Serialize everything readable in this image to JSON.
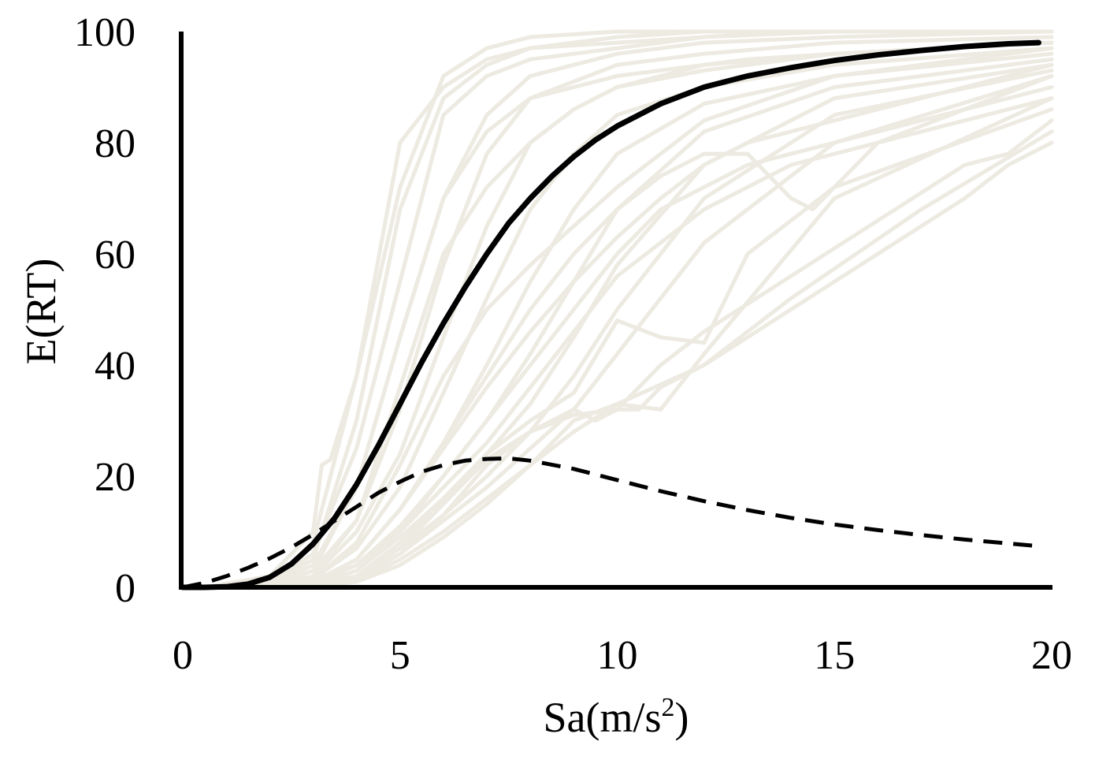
{
  "chart_data": {
    "type": "line",
    "title": "",
    "xlabel": "Sa(m/s",
    "xlabel_sup": "2",
    "xlabel_close": ")",
    "ylabel": "E(RT)",
    "xlim": [
      0,
      20
    ],
    "ylim": [
      0,
      100
    ],
    "xticks": [
      0,
      5,
      10,
      15,
      20
    ],
    "yticks": [
      0,
      20,
      40,
      60,
      80,
      100
    ],
    "grid": false,
    "legend": "none",
    "colors": {
      "background_curves": "#ECEAE1",
      "mean": "#000000",
      "dashed": "#000000"
    },
    "background_curves": [
      {
        "name": "",
        "x": [
          0.5,
          2,
          3,
          3.2,
          3.4,
          4,
          5,
          6,
          7,
          8,
          10,
          14,
          20
        ],
        "y": [
          0,
          2,
          10,
          22,
          23,
          38,
          72,
          92,
          97,
          99,
          100,
          100,
          100
        ]
      },
      {
        "name": "",
        "x": [
          0.5,
          2,
          3,
          4,
          5,
          6,
          7,
          8,
          10,
          12,
          14,
          20
        ],
        "y": [
          0,
          1,
          8,
          38,
          80,
          90,
          95,
          97,
          98,
          99,
          100,
          100
        ]
      },
      {
        "name": "",
        "x": [
          0.5,
          2,
          3,
          4,
          5,
          6,
          7,
          8,
          10,
          12,
          15,
          20
        ],
        "y": [
          0,
          1,
          6,
          25,
          55,
          85,
          92,
          95,
          97,
          99,
          100,
          100
        ]
      },
      {
        "name": "",
        "x": [
          0.5,
          2,
          3,
          4,
          5,
          6,
          7,
          8,
          10,
          12,
          15,
          20
        ],
        "y": [
          0,
          0.5,
          4,
          18,
          45,
          70,
          85,
          92,
          96,
          98,
          99,
          100
        ]
      },
      {
        "name": "",
        "x": [
          0.5,
          2,
          3,
          4,
          5,
          6,
          7,
          8,
          10,
          12,
          15,
          20
        ],
        "y": [
          0,
          0.5,
          3,
          12,
          32,
          58,
          78,
          88,
          94,
          96,
          98,
          99
        ]
      },
      {
        "name": "",
        "x": [
          0.5,
          2,
          3,
          4,
          5,
          6,
          7,
          8,
          9,
          10,
          12,
          15,
          20
        ],
        "y": [
          0,
          0.3,
          2,
          10,
          24,
          45,
          65,
          80,
          86,
          90,
          93,
          96,
          98
        ]
      },
      {
        "name": "",
        "x": [
          0.5,
          2,
          3,
          4,
          5,
          6,
          7,
          8,
          9,
          10,
          12,
          15,
          20
        ],
        "y": [
          0,
          0.2,
          1.5,
          7,
          18,
          35,
          52,
          68,
          78,
          85,
          90,
          94,
          97
        ]
      },
      {
        "name": "",
        "x": [
          0.5,
          2,
          3,
          4,
          5,
          6,
          7,
          8,
          9,
          10,
          12,
          15,
          20
        ],
        "y": [
          0,
          0.1,
          1,
          5,
          14,
          26,
          40,
          55,
          68,
          78,
          87,
          92,
          96
        ]
      },
      {
        "name": "",
        "x": [
          0.5,
          2,
          3,
          4,
          5,
          6,
          7,
          8,
          9,
          10,
          12,
          15,
          20
        ],
        "y": [
          0,
          0.1,
          0.8,
          4,
          11,
          20,
          30,
          42,
          55,
          68,
          82,
          90,
          95
        ]
      },
      {
        "name": "",
        "x": [
          0.5,
          2,
          3,
          4,
          5,
          6,
          7,
          8,
          9,
          10,
          12,
          15,
          20
        ],
        "y": [
          0,
          0.1,
          0.6,
          3,
          9,
          16,
          24,
          33,
          45,
          58,
          76,
          88,
          94
        ]
      },
      {
        "name": "",
        "x": [
          0.5,
          2,
          3,
          4,
          5,
          6,
          7,
          8,
          9,
          10,
          12,
          15,
          20
        ],
        "y": [
          0,
          0.05,
          0.5,
          2,
          7,
          13,
          20,
          28,
          38,
          50,
          70,
          85,
          93
        ]
      },
      {
        "name": "",
        "x": [
          0.5,
          2,
          3,
          4,
          5,
          6,
          7,
          8,
          9,
          10,
          12,
          15,
          20
        ],
        "y": [
          0,
          0.05,
          0.4,
          1.5,
          6,
          12,
          18,
          25,
          32,
          42,
          62,
          80,
          92
        ]
      },
      {
        "name": "",
        "x": [
          0.5,
          2,
          3,
          4,
          5,
          6,
          7,
          8,
          9,
          10,
          11,
          12,
          15,
          20
        ],
        "y": [
          0,
          0.05,
          0.3,
          1.2,
          5,
          10,
          16,
          22,
          28,
          33,
          32,
          42,
          70,
          88
        ]
      },
      {
        "name": "",
        "x": [
          0.5,
          2,
          3,
          4,
          5,
          6,
          7,
          8,
          9,
          10,
          12,
          14,
          17,
          20
        ],
        "y": [
          0,
          0.05,
          0.3,
          1,
          4,
          9,
          15,
          22,
          30,
          33,
          40,
          52,
          68,
          82
        ]
      },
      {
        "name": "",
        "x": [
          0.5,
          2,
          3,
          4,
          5,
          6,
          7,
          8,
          9,
          10,
          11,
          12,
          13,
          15,
          20
        ],
        "y": [
          0,
          0.05,
          0.5,
          2,
          8,
          16,
          24,
          30,
          35,
          48,
          45,
          44,
          60,
          72,
          86
        ]
      },
      {
        "name": "",
        "x": [
          0.5,
          2,
          3,
          4,
          5,
          6,
          7,
          8,
          9,
          10,
          11,
          12,
          13,
          14,
          15,
          20
        ],
        "y": [
          0,
          0.05,
          0.5,
          3,
          10,
          20,
          30,
          40,
          50,
          60,
          68,
          72,
          76,
          78,
          80,
          90
        ]
      },
      {
        "name": "",
        "x": [
          0.5,
          2,
          3,
          4,
          5,
          6,
          7,
          8,
          9,
          10,
          11,
          12,
          13,
          14,
          14.5,
          15,
          16,
          20
        ],
        "y": [
          0,
          0.1,
          1,
          5,
          14,
          26,
          38,
          50,
          60,
          68,
          74,
          78,
          78,
          70,
          68,
          72,
          80,
          92
        ]
      },
      {
        "name": "",
        "x": [
          0.5,
          2,
          3,
          4,
          5,
          6,
          7,
          8,
          9,
          10,
          11,
          12,
          13,
          14,
          15,
          16,
          18,
          20
        ],
        "y": [
          0,
          0.1,
          1,
          5,
          14,
          25,
          36,
          46,
          55,
          63,
          70,
          76,
          80,
          82,
          84,
          86,
          90,
          94
        ]
      },
      {
        "name": "",
        "x": [
          0.5,
          2,
          3,
          4,
          5,
          6,
          7,
          8,
          9,
          10,
          12,
          14,
          16,
          18,
          20
        ],
        "y": [
          0,
          0.1,
          1,
          4,
          10,
          18,
          26,
          36,
          46,
          56,
          68,
          76,
          80,
          84,
          88
        ]
      },
      {
        "name": "",
        "x": [
          0.5,
          2,
          3,
          4,
          5,
          6,
          7,
          8,
          9,
          10,
          11,
          12,
          14,
          16,
          18,
          19,
          20
        ],
        "y": [
          0,
          0.05,
          0.5,
          2,
          7,
          15,
          23,
          28,
          31,
          32,
          40,
          46,
          56,
          66,
          76,
          78,
          84
        ]
      },
      {
        "name": "",
        "x": [
          0.5,
          2,
          3,
          4,
          5,
          6,
          7,
          8,
          9,
          9.5,
          10,
          10.5,
          11,
          12,
          13,
          14,
          15,
          16,
          17,
          18,
          19,
          20
        ],
        "y": [
          0,
          0.05,
          0.5,
          2,
          6,
          13,
          22,
          28,
          32,
          30,
          32,
          32,
          36,
          40,
          45,
          50,
          55,
          60,
          65,
          70,
          76,
          80
        ]
      },
      {
        "name": "",
        "x": [
          0.5,
          2,
          3,
          4,
          5,
          6,
          7,
          8,
          9,
          10,
          11,
          12,
          13,
          15,
          20
        ],
        "y": [
          0,
          0.2,
          3,
          18,
          45,
          70,
          82,
          88,
          90,
          92,
          93,
          94,
          95,
          96,
          98
        ]
      },
      {
        "name": "",
        "x": [
          0.5,
          2,
          3,
          4,
          5,
          6,
          7,
          8,
          10,
          12,
          15,
          20
        ],
        "y": [
          0,
          0.8,
          5,
          30,
          68,
          88,
          94,
          97,
          99,
          100,
          100,
          100
        ]
      },
      {
        "name": "",
        "x": [
          0.5,
          2,
          3,
          4,
          5,
          6,
          7,
          8,
          9,
          10,
          12,
          15,
          20
        ],
        "y": [
          0,
          0.3,
          2,
          12,
          36,
          60,
          72,
          80,
          86,
          90,
          94,
          96,
          98
        ]
      },
      {
        "name": "",
        "x": [
          0.5,
          2,
          3,
          4,
          5,
          6,
          7,
          8,
          9,
          10,
          11,
          12,
          15,
          20
        ],
        "y": [
          0,
          0.2,
          1.5,
          8,
          22,
          38,
          50,
          58,
          65,
          72,
          78,
          84,
          92,
          97
        ]
      }
    ],
    "series": [
      {
        "name": "",
        "style": "solid",
        "x": [
          0,
          0.5,
          1,
          1.5,
          2,
          2.5,
          3,
          3.5,
          4,
          4.5,
          5,
          5.5,
          6,
          6.5,
          7,
          7.5,
          8,
          8.5,
          9,
          9.5,
          10,
          11,
          12,
          13,
          14,
          15,
          16,
          17,
          18,
          19,
          19.7
        ],
        "y": [
          0,
          0,
          0.1,
          0.6,
          1.8,
          4.2,
          7.8,
          12.5,
          18.5,
          25.5,
          33,
          40.5,
          47.5,
          54,
          60,
          65.5,
          70,
          74,
          77.5,
          80.5,
          83,
          87,
          90,
          92,
          93.5,
          94.8,
          95.8,
          96.6,
          97.3,
          97.8,
          98
        ]
      },
      {
        "name": "",
        "style": "dashed",
        "x": [
          0,
          0.5,
          1,
          1.5,
          2,
          2.5,
          3,
          3.5,
          4,
          4.5,
          5,
          5.5,
          6,
          6.5,
          7,
          7.5,
          8,
          9,
          10,
          11,
          12,
          13,
          14,
          15,
          16,
          17,
          18,
          19,
          19.7
        ],
        "y": [
          0,
          0.8,
          2,
          3.5,
          5.2,
          7.2,
          9.5,
          12,
          14.5,
          17,
          19,
          20.8,
          22,
          22.8,
          23.1,
          23.2,
          22.8,
          21.3,
          19.3,
          17.3,
          15.5,
          13.9,
          12.5,
          11.3,
          10.3,
          9.4,
          8.6,
          7.9,
          7.4
        ]
      }
    ]
  }
}
